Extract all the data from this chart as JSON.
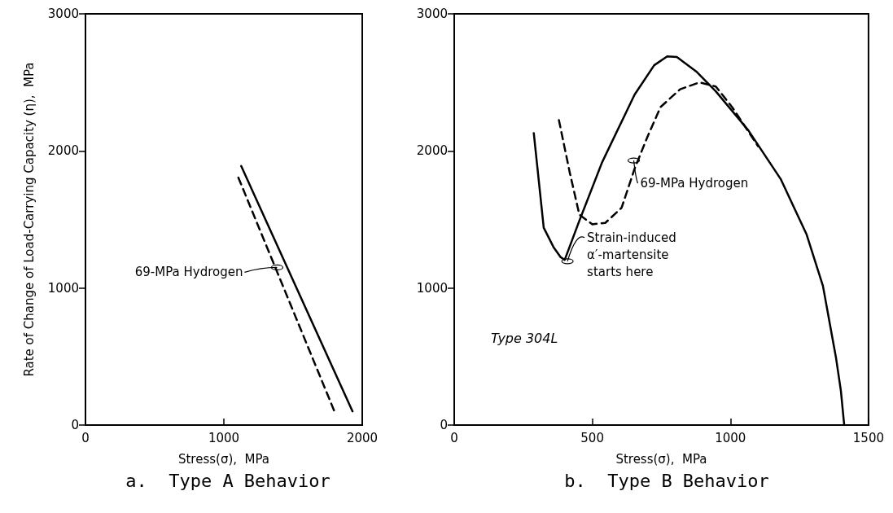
{
  "chart_data": [
    {
      "type": "line",
      "title": "a.  Type A Behavior",
      "xlabel": "Stress(σ),  MPa",
      "ylabel": "Rate of Change of Load-Carrying Capacity (η),  MPa",
      "xlim": [
        0,
        2000
      ],
      "xticks": [
        0,
        1000,
        2000
      ],
      "ylim": [
        0,
        3000
      ],
      "yticks": [
        0,
        1000,
        2000,
        3000
      ],
      "grid": false,
      "marker": "none",
      "series": [
        {
          "color": "#000000",
          "line_style": "solid",
          "x": [
            1125,
            1930
          ],
          "values": [
            1890,
            100
          ]
        },
        {
          "color": "#000000",
          "line_style": "dashed",
          "x": [
            1105,
            1805
          ],
          "values": [
            1805,
            85
          ]
        }
      ],
      "annotations": [
        {
          "text": "69-MPa Hydrogen",
          "x": 1385,
          "y": 1150
        }
      ]
    },
    {
      "type": "line",
      "title": "b.  Type B Behavior",
      "xlabel": "Stress(σ),  MPa",
      "xlim": [
        0,
        1500
      ],
      "xticks": [
        0,
        500,
        1000,
        1500
      ],
      "ylim": [
        0,
        3000
      ],
      "yticks": [
        0,
        1000,
        2000,
        3000
      ],
      "grid": false,
      "marker": "none",
      "series": [
        {
          "color": "#000000",
          "line_style": "solid",
          "x": [
            288,
            300,
            324,
            359,
            385,
            400,
            453,
            535,
            653,
            724,
            771,
            806,
            876,
            947,
            1065,
            1182,
            1276,
            1335,
            1382,
            1400,
            1412
          ],
          "values": [
            2130,
            1900,
            1440,
            1300,
            1225,
            1205,
            1490,
            1915,
            2410,
            2625,
            2690,
            2685,
            2580,
            2435,
            2150,
            1795,
            1390,
            1015,
            495,
            250,
            0
          ]
        },
        {
          "color": "#000000",
          "line_style": "dashed",
          "x": [
            379,
            418,
            453,
            500,
            547,
            606,
            653,
            700,
            747,
            818,
            888,
            947,
            1006,
            1100
          ],
          "values": [
            2225,
            1845,
            1535,
            1465,
            1475,
            1585,
            1870,
            2105,
            2320,
            2450,
            2500,
            2470,
            2320,
            2035
          ]
        }
      ],
      "annotations": [
        {
          "text": "69-MPa Hydrogen",
          "x": 650,
          "y": 1930
        },
        {
          "text": "Strain-induced\nα′-martensite\nstarts here",
          "x": 410,
          "y": 1195
        },
        "Type 304L"
      ]
    }
  ]
}
